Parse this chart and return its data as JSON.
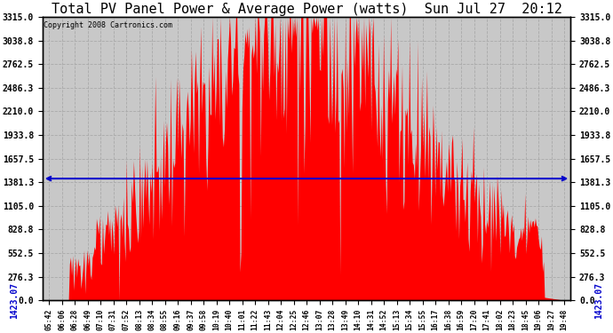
{
  "title": "Total PV Panel Power & Average Power (watts)  Sun Jul 27  20:12",
  "copyright": "Copyright 2008 Cartronics.com",
  "ymax": 3315.0,
  "ymin": 0.0,
  "yticks": [
    0.0,
    276.3,
    552.5,
    828.8,
    1105.0,
    1381.3,
    1657.5,
    1933.8,
    2210.0,
    2486.3,
    2762.5,
    3038.8,
    3315.0
  ],
  "ytick_labels": [
    "0.0",
    "276.3",
    "552.5",
    "828.8",
    "1105.0",
    "1381.3",
    "1657.5",
    "1933.8",
    "2210.0",
    "2486.3",
    "2762.5",
    "3038.8",
    "3315.0"
  ],
  "average_line_y": 1423.07,
  "average_label": "1423.07",
  "bg_color": "#ffffff",
  "plot_bg_color": "#c8c8c8",
  "fill_color": "#ff0000",
  "line_color": "#0000cc",
  "grid_color": "#aaaaaa",
  "title_fontsize": 11,
  "copyright_fontsize": 6,
  "tick_fontsize": 7,
  "time_labels": [
    "05:42",
    "06:06",
    "06:28",
    "06:49",
    "07:10",
    "07:31",
    "07:52",
    "08:13",
    "08:34",
    "08:55",
    "09:16",
    "09:37",
    "09:58",
    "10:19",
    "10:40",
    "11:01",
    "11:22",
    "11:43",
    "12:04",
    "12:25",
    "12:46",
    "13:07",
    "13:28",
    "13:49",
    "14:10",
    "14:31",
    "14:52",
    "15:13",
    "15:34",
    "15:55",
    "16:17",
    "16:38",
    "16:59",
    "17:20",
    "17:41",
    "18:02",
    "18:23",
    "18:45",
    "19:06",
    "19:27",
    "19:48"
  ]
}
